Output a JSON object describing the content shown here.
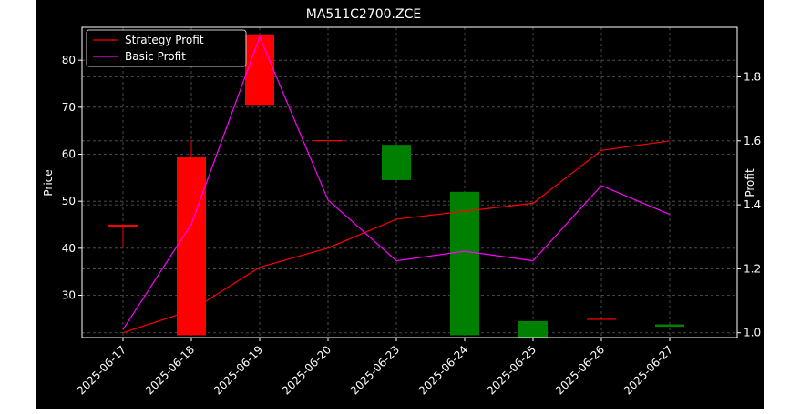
{
  "colors": {
    "background": "#000000",
    "text": "#ffffff",
    "grid": "#5a5a5a",
    "up": "#ff0000",
    "down": "#008000",
    "strategy": "#ff0000",
    "basic": "#ff00ff"
  },
  "chart_data": {
    "type": "candlestick+line",
    "title": "MA511C2700.ZCE",
    "xlabel": "",
    "ylabel_left": "Price",
    "ylabel_right": "Profit",
    "categories": [
      "2025-06-17",
      "2025-06-18",
      "2025-06-19",
      "2025-06-20",
      "2025-06-23",
      "2025-06-24",
      "2025-06-25",
      "2025-06-26",
      "2025-06-27"
    ],
    "y_left": {
      "lim": [
        21.0,
        87.0
      ],
      "ticks": [
        30,
        40,
        50,
        60,
        70,
        80
      ]
    },
    "y_right": {
      "lim": [
        0.985,
        1.955
      ],
      "ticks": [
        "1.0",
        "1.2",
        "1.4",
        "1.6",
        "1.8"
      ]
    },
    "candles": [
      {
        "date": "2025-06-17",
        "open": 44.5,
        "close": 45.0,
        "high": 45.0,
        "low": 40.3,
        "dir": "up"
      },
      {
        "date": "2025-06-18",
        "open": 21.5,
        "close": 59.5,
        "high": 63.0,
        "low": 21.5,
        "dir": "up"
      },
      {
        "date": "2025-06-19",
        "open": 70.5,
        "close": 85.5,
        "high": 85.5,
        "low": 70.5,
        "dir": "up"
      },
      {
        "date": "2025-06-20",
        "open": 63.0,
        "close": 63.0,
        "high": 63.0,
        "low": 63.0,
        "dir": "up"
      },
      {
        "date": "2025-06-23",
        "open": 62.0,
        "close": 54.5,
        "high": 62.0,
        "low": 54.5,
        "dir": "down"
      },
      {
        "date": "2025-06-24",
        "open": 52.0,
        "close": 21.5,
        "high": 52.0,
        "low": 21.5,
        "dir": "down"
      },
      {
        "date": "2025-06-25",
        "open": 24.5,
        "close": 21.0,
        "high": 24.5,
        "low": 21.0,
        "dir": "down"
      },
      {
        "date": "2025-06-26",
        "open": 25.0,
        "close": 25.0,
        "high": 25.0,
        "low": 25.0,
        "dir": "up"
      },
      {
        "date": "2025-06-27",
        "open": 23.8,
        "close": 23.3,
        "high": 23.8,
        "low": 23.3,
        "dir": "down"
      }
    ],
    "series": [
      {
        "name": "Strategy Profit",
        "axis": "right",
        "color": "#ff0000",
        "values": [
          1.0,
          1.07,
          1.205,
          1.265,
          1.355,
          1.38,
          1.405,
          1.57,
          1.6
        ]
      },
      {
        "name": "Basic Profit",
        "axis": "right",
        "color": "#ff00ff",
        "values": [
          1.01,
          1.34,
          1.925,
          1.415,
          1.225,
          1.255,
          1.225,
          1.46,
          1.37
        ]
      }
    ],
    "legend": "top-left",
    "grid": true
  }
}
